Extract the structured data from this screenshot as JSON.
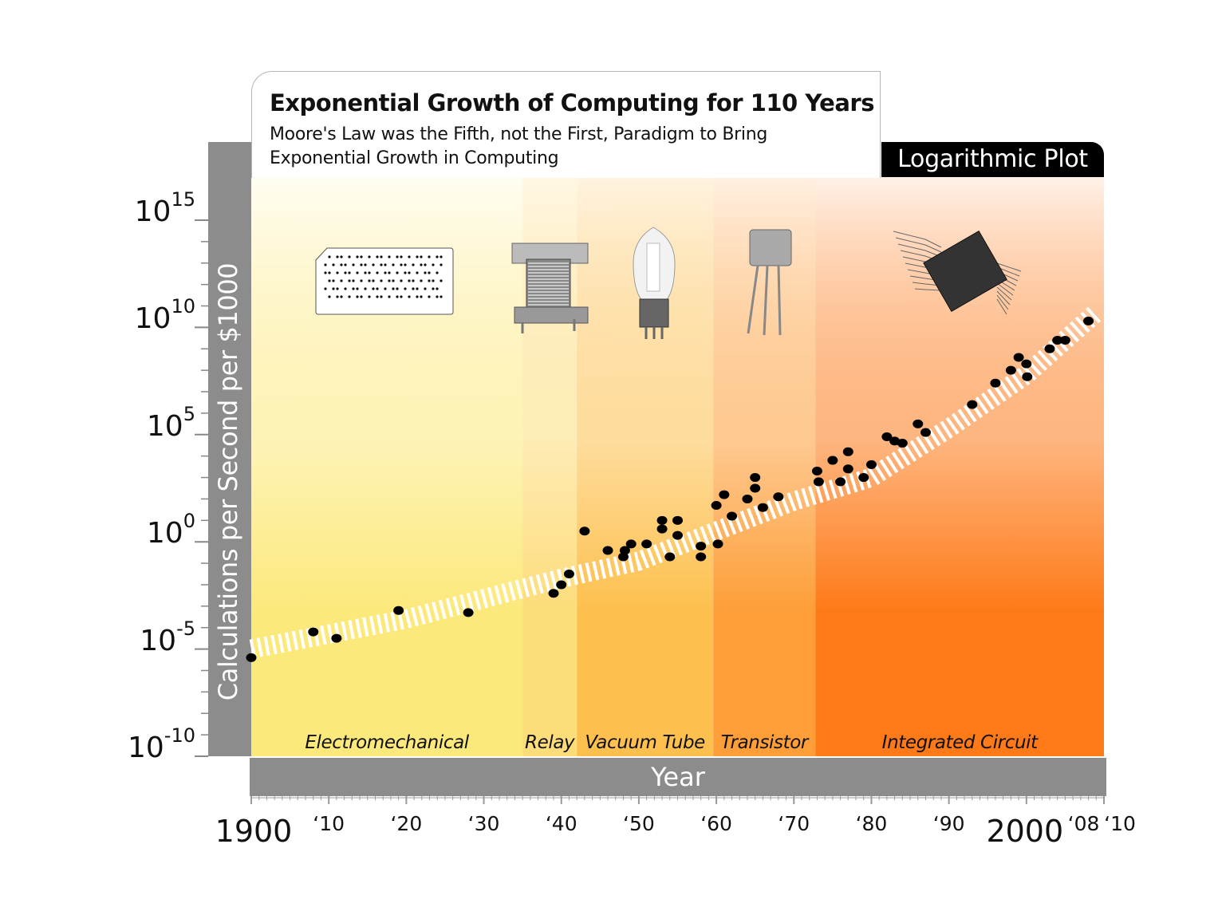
{
  "chart_data": {
    "type": "scatter",
    "title": "Exponential Growth of Computing for 110 Years",
    "subtitle": "Moore's Law was the Fifth, not the First, Paradigm to Bring Exponential Growth in Computing",
    "scale_label": "Logarithmic Plot",
    "xlabel": "Year",
    "ylabel": "Calculations per Second per $1000",
    "y_scale": "log",
    "xlim": [
      1900,
      2010
    ],
    "ylim_exponent": [
      -10,
      15
    ],
    "grid": false,
    "y_ticks": [
      {
        "base": "10",
        "exp": "15",
        "value": 15
      },
      {
        "base": "10",
        "exp": "10",
        "value": 10
      },
      {
        "base": "10",
        "exp": "5",
        "value": 5
      },
      {
        "base": "10",
        "exp": "0",
        "value": 0
      },
      {
        "base": "10",
        "exp": "-5",
        "value": -5
      },
      {
        "base": "10",
        "exp": "-10",
        "value": -10
      }
    ],
    "x_ticks": [
      {
        "label": "1900",
        "value": 1900,
        "big": true
      },
      {
        "label": "‘10",
        "value": 1910
      },
      {
        "label": "‘20",
        "value": 1920
      },
      {
        "label": "‘30",
        "value": 1930
      },
      {
        "label": "‘40",
        "value": 1940
      },
      {
        "label": "‘50",
        "value": 1950
      },
      {
        "label": "‘60",
        "value": 1960
      },
      {
        "label": "‘70",
        "value": 1970
      },
      {
        "label": "‘80",
        "value": 1980
      },
      {
        "label": "‘90",
        "value": 1990
      },
      {
        "label": "2000",
        "value": 2000,
        "big": true
      },
      {
        "label": "‘08",
        "value": 2008
      },
      {
        "label": "‘10",
        "value": 2010
      }
    ],
    "eras": [
      {
        "name": "Electromechanical",
        "start": 1900,
        "end": 1935,
        "color": "#fce97c"
      },
      {
        "name": "Relay",
        "start": 1935,
        "end": 1942,
        "color": "#fddc7a"
      },
      {
        "name": "Vacuum Tube",
        "start": 1942,
        "end": 1959.6,
        "color": "#fdc04e"
      },
      {
        "name": "Transistor",
        "start": 1959.6,
        "end": 1972.8,
        "color": "#fd9e38"
      },
      {
        "name": "Integrated Circuit",
        "start": 1972.8,
        "end": 2010,
        "color": "#fe7a18"
      }
    ],
    "trend_log10": [
      [
        1900,
        -5.0
      ],
      [
        1920,
        -3.6
      ],
      [
        1940,
        -1.7
      ],
      [
        1950,
        -0.9
      ],
      [
        1960,
        0.5
      ],
      [
        1970,
        1.9
      ],
      [
        1980,
        3.0
      ],
      [
        1990,
        5.3
      ],
      [
        2000,
        7.8
      ],
      [
        2009,
        10.7
      ]
    ],
    "points_log10": [
      [
        1900,
        -5.4
      ],
      [
        1908,
        -4.2
      ],
      [
        1911,
        -4.5
      ],
      [
        1919,
        -3.2
      ],
      [
        1928,
        -3.3
      ],
      [
        1939,
        -2.4
      ],
      [
        1940,
        -2.0
      ],
      [
        1941,
        -1.5
      ],
      [
        1943,
        0.5
      ],
      [
        1946,
        -0.4
      ],
      [
        1948,
        -0.7
      ],
      [
        1948.2,
        -0.4
      ],
      [
        1949,
        -0.1
      ],
      [
        1951,
        -0.1
      ],
      [
        1953,
        1.0
      ],
      [
        1953,
        0.6
      ],
      [
        1954,
        -0.7
      ],
      [
        1955,
        1.0
      ],
      [
        1955,
        0.3
      ],
      [
        1958,
        -0.7
      ],
      [
        1958,
        -0.2
      ],
      [
        1960,
        1.7
      ],
      [
        1960.2,
        -0.1
      ],
      [
        1961,
        2.2
      ],
      [
        1962,
        1.2
      ],
      [
        1964,
        2.0
      ],
      [
        1965,
        3.0
      ],
      [
        1965,
        2.5
      ],
      [
        1966,
        1.6
      ],
      [
        1968,
        2.1
      ],
      [
        1973,
        3.3
      ],
      [
        1973.2,
        2.8
      ],
      [
        1975,
        3.8
      ],
      [
        1976,
        2.8
      ],
      [
        1977,
        4.2
      ],
      [
        1977,
        3.4
      ],
      [
        1979,
        3.0
      ],
      [
        1980,
        3.6
      ],
      [
        1982,
        4.9
      ],
      [
        1983,
        4.7
      ],
      [
        1984,
        4.6
      ],
      [
        1986,
        5.5
      ],
      [
        1987,
        5.1
      ],
      [
        1993,
        6.4
      ],
      [
        1996,
        7.4
      ],
      [
        1998,
        8.0
      ],
      [
        1999,
        8.6
      ],
      [
        2000,
        8.3
      ],
      [
        2000.1,
        7.7
      ],
      [
        2003,
        9.0
      ],
      [
        2004,
        9.4
      ],
      [
        2005,
        9.4
      ],
      [
        2008,
        10.3
      ]
    ],
    "point_color": "#000000",
    "trend_color": "#ffffff",
    "axis_band_color": "#8c8c8c"
  }
}
